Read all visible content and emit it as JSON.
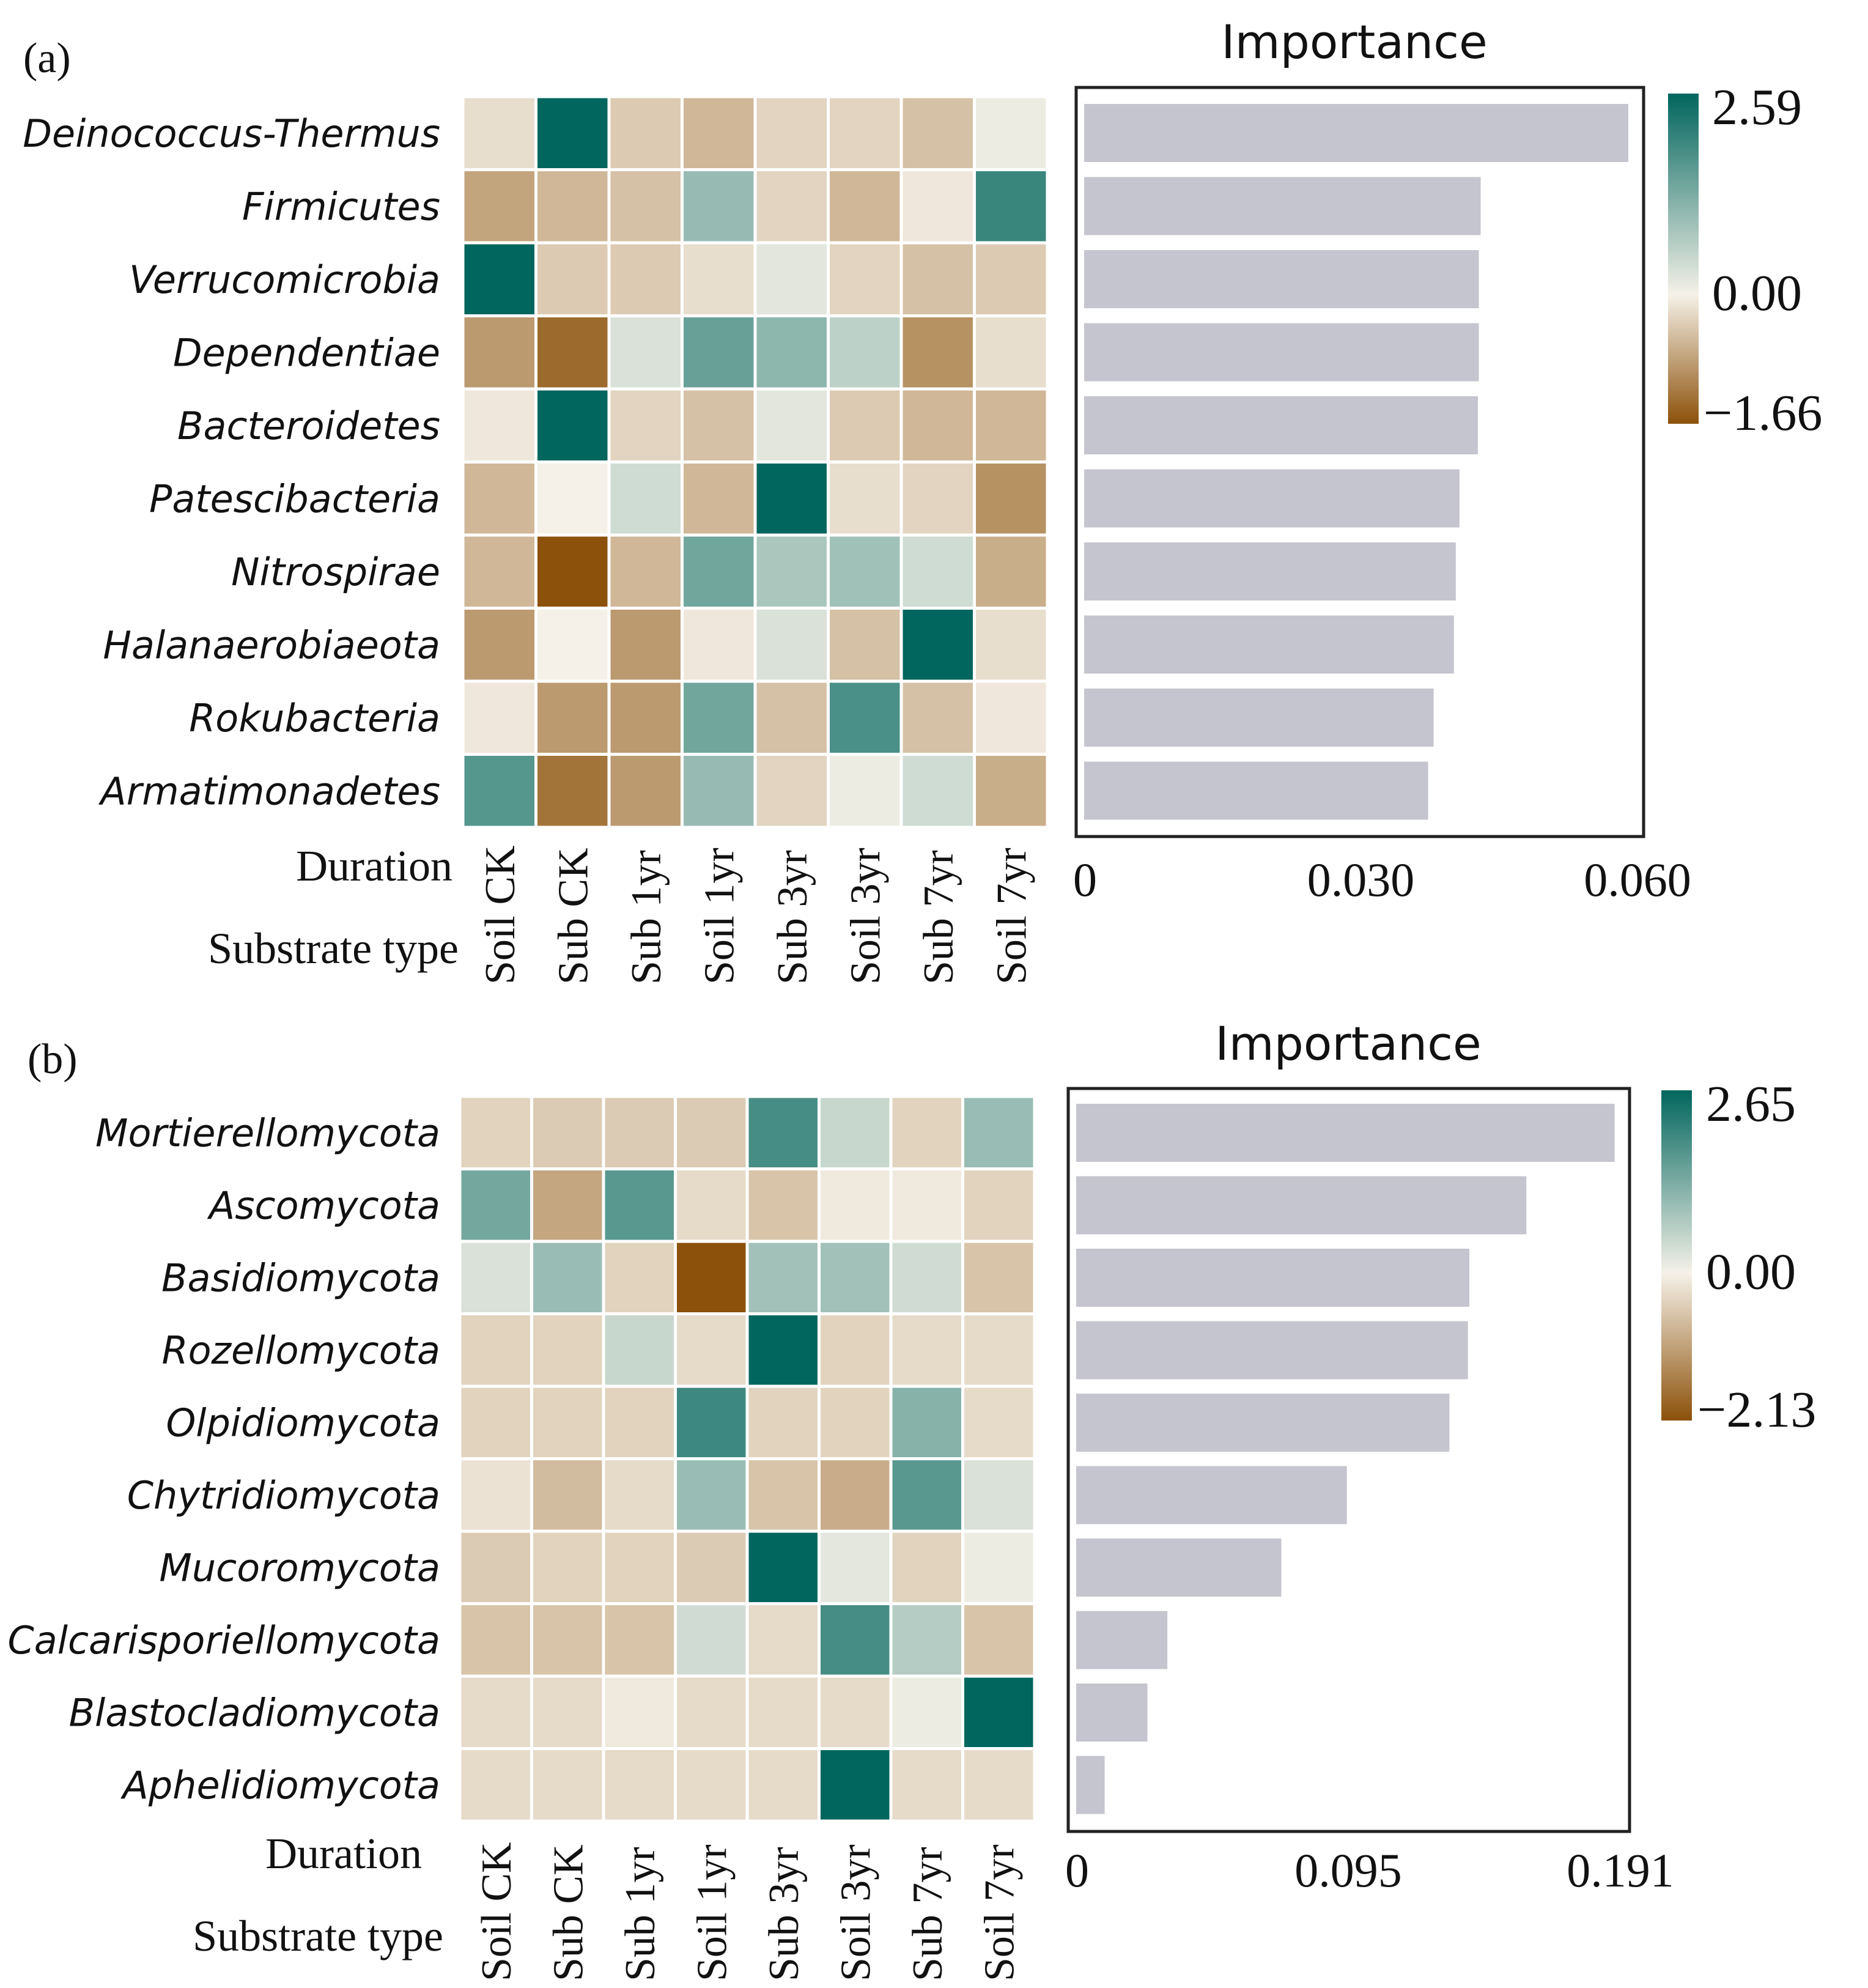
{
  "chart_data": [
    {
      "panel_label": "(a)",
      "type": "heatmap",
      "rows": [
        "Deinococcus-Thermus",
        "Firmicutes",
        "Verrucomicrobia",
        "Dependentiae",
        "Bacteroidetes",
        "Patescibacteria",
        "Nitrospirae",
        "Halanaerobiaeota",
        "Rokubacteria",
        "Armatimonadetes"
      ],
      "columns": [
        "Soil CK",
        "Sub CK",
        "Sub 1yr",
        "Soil 1yr",
        "Sub 3yr",
        "Soil 3yr",
        "Sub 7yr",
        "Soil 7yr"
      ],
      "values": [
        [
          -0.2,
          2.59,
          -0.4,
          -0.6,
          -0.3,
          -0.3,
          -0.5,
          0.1
        ],
        [
          -0.8,
          -0.6,
          -0.5,
          1.0,
          -0.3,
          -0.6,
          -0.1,
          2.0
        ],
        [
          2.59,
          -0.4,
          -0.4,
          -0.2,
          0.2,
          -0.3,
          -0.5,
          -0.4
        ],
        [
          -0.9,
          -1.4,
          0.3,
          1.5,
          1.1,
          0.6,
          -1.0,
          -0.2
        ],
        [
          -0.1,
          2.59,
          -0.3,
          -0.5,
          0.2,
          -0.4,
          -0.6,
          -0.6
        ],
        [
          -0.6,
          0.0,
          0.4,
          -0.6,
          2.59,
          -0.2,
          -0.3,
          -1.0
        ],
        [
          -0.6,
          -1.66,
          -0.6,
          1.4,
          0.8,
          0.9,
          0.4,
          -0.7
        ],
        [
          -0.9,
          0.0,
          -0.9,
          -0.1,
          0.3,
          -0.5,
          2.59,
          -0.2
        ],
        [
          -0.1,
          -0.9,
          -0.9,
          1.4,
          -0.5,
          1.8,
          -0.5,
          -0.1
        ],
        [
          1.7,
          -1.3,
          -0.9,
          1.0,
          -0.3,
          0.1,
          0.4,
          -0.7
        ]
      ],
      "row_axis_titles": [
        "Duration",
        "Substrate type"
      ],
      "colorbar": {
        "min": -1.66,
        "max": 2.59,
        "ticks": [
          "2.59",
          "0.00",
          "−1.66"
        ],
        "low_color": "#8c510a",
        "mid_color": "#f5f1e8",
        "high_color": "#01665e"
      },
      "importance": {
        "title": "Importance",
        "type": "bar",
        "orientation": "horizontal",
        "values": [
          0.059,
          0.043,
          0.0428,
          0.0428,
          0.0427,
          0.0407,
          0.0403,
          0.0401,
          0.0379,
          0.0373
        ],
        "xlim": [
          0,
          0.06
        ],
        "xticks": [
          "0",
          "0.030",
          "0.060"
        ],
        "bar_color": "#c5c5cf"
      }
    },
    {
      "panel_label": "(b)",
      "type": "heatmap",
      "rows": [
        "Mortierellomycota",
        "Ascomycota",
        "Basidiomycota",
        "Rozellomycota",
        "Olpidiomycota",
        "Chytridiomycota",
        "Mucoromycota",
        "Calcarisporiellomycota",
        "Blastocladiomycota",
        "Aphelidiomycota"
      ],
      "columns": [
        "Soil CK",
        "Sub CK",
        "Sub 1yr",
        "Soil 1yr",
        "Sub 3yr",
        "Soil 3yr",
        "Sub 7yr",
        "Soil 7yr"
      ],
      "values": [
        [
          -0.4,
          -0.5,
          -0.5,
          -0.5,
          1.9,
          0.5,
          -0.4,
          1.0
        ],
        [
          1.4,
          -1.0,
          1.7,
          -0.3,
          -0.6,
          -0.1,
          -0.1,
          -0.4
        ],
        [
          0.3,
          1.0,
          -0.4,
          -2.13,
          0.9,
          0.9,
          0.4,
          -0.6
        ],
        [
          -0.4,
          -0.4,
          0.5,
          -0.3,
          2.65,
          -0.4,
          -0.3,
          -0.3
        ],
        [
          -0.4,
          -0.4,
          -0.4,
          2.0,
          -0.4,
          -0.4,
          1.2,
          -0.3
        ],
        [
          -0.2,
          -0.7,
          -0.3,
          1.0,
          -0.6,
          -0.9,
          1.7,
          0.3
        ],
        [
          -0.5,
          -0.4,
          -0.4,
          -0.5,
          2.65,
          0.2,
          -0.4,
          0.1
        ],
        [
          -0.6,
          -0.6,
          -0.6,
          0.4,
          -0.3,
          1.9,
          0.7,
          -0.6
        ],
        [
          -0.3,
          -0.3,
          -0.1,
          -0.3,
          -0.3,
          -0.3,
          0.1,
          2.65
        ],
        [
          -0.3,
          -0.3,
          -0.3,
          -0.3,
          -0.3,
          2.65,
          -0.3,
          -0.3
        ]
      ],
      "row_axis_titles": [
        "Duration",
        "Substrate type"
      ],
      "colorbar": {
        "min": -2.13,
        "max": 2.65,
        "ticks": [
          "2.65",
          "0.00",
          "−2.13"
        ],
        "low_color": "#8c510a",
        "mid_color": "#f5f1e8",
        "high_color": "#01665e"
      },
      "importance": {
        "title": "Importance",
        "type": "bar",
        "orientation": "horizontal",
        "values": [
          0.189,
          0.158,
          0.138,
          0.1375,
          0.131,
          0.095,
          0.072,
          0.032,
          0.025,
          0.01
        ],
        "xlim": [
          0,
          0.191
        ],
        "xticks": [
          "0",
          "0.095",
          "0.191"
        ],
        "bar_color": "#c5c5cf"
      }
    }
  ]
}
